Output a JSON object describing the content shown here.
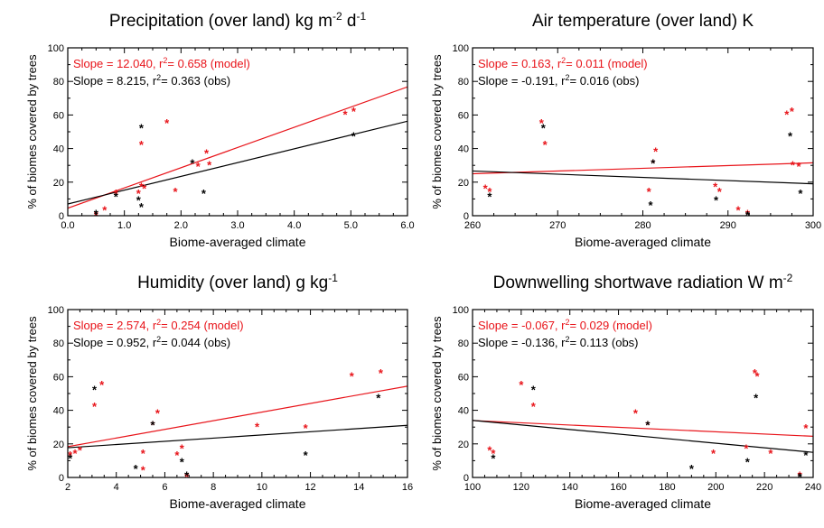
{
  "figure": {
    "ylabel": "% of biomes covered by trees",
    "xlabel": "Biome-averaged climate",
    "model_color": "#e8141a",
    "obs_color": "#000000"
  },
  "chart_data": [
    {
      "type": "scatter",
      "title": {
        "main": "Precipitation (over land) kg m",
        "sup1": "-2",
        "mid": " d",
        "sup2": "-1"
      },
      "xlabel": "Biome-averaged climate",
      "ylabel": "% of biomes covered by trees",
      "xlim": [
        0,
        6
      ],
      "ylim": [
        0,
        100
      ],
      "xticks": [
        0,
        1,
        2,
        3,
        4,
        5,
        6
      ],
      "xtick_labels": [
        "0.0",
        "1.0",
        "2.0",
        "3.0",
        "4.0",
        "5.0",
        "6.0"
      ],
      "yticks": [
        0,
        20,
        40,
        60,
        80,
        100
      ],
      "ytick_labels": [
        "0",
        "20",
        "40",
        "60",
        "80",
        "100"
      ],
      "annotations": {
        "model": {
          "pre": "Slope = 12.040, r",
          "sup": "2",
          "post": "= 0.658 (model)"
        },
        "obs": {
          "pre": "Slope = 8.215, r",
          "sup": "2",
          "post": "= 0.363 (obs)"
        }
      },
      "series": [
        {
          "points": [
            [
              0.5,
              1
            ],
            [
              0.65,
              4
            ],
            [
              0.85,
              14
            ],
            [
              1.25,
              14
            ],
            [
              1.3,
              18
            ],
            [
              1.3,
              43
            ],
            [
              1.35,
              17
            ],
            [
              1.75,
              56
            ],
            [
              1.9,
              15
            ],
            [
              2.3,
              30
            ],
            [
              2.45,
              38
            ],
            [
              2.5,
              31
            ],
            [
              4.9,
              61
            ],
            [
              5.05,
              63
            ]
          ]
        },
        {
          "points": [
            [
              0.5,
              2
            ],
            [
              0.85,
              12
            ],
            [
              1.25,
              10
            ],
            [
              1.3,
              53
            ],
            [
              1.3,
              6
            ],
            [
              2.2,
              32
            ],
            [
              2.4,
              14
            ],
            [
              5.05,
              48
            ]
          ]
        }
      ],
      "fits": [
        {
          "slope": 12.04,
          "intercept": 4.5
        },
        {
          "slope": 8.215,
          "intercept": 7.0
        }
      ]
    },
    {
      "type": "scatter",
      "title": {
        "main": "Air temperature (over land) K",
        "sup1": "",
        "mid": "",
        "sup2": ""
      },
      "xlabel": "Biome-averaged climate",
      "ylabel": "% of biomes covered by trees",
      "xlim": [
        260,
        300
      ],
      "ylim": [
        0,
        100
      ],
      "xticks": [
        260,
        270,
        280,
        290,
        300
      ],
      "xtick_labels": [
        "260",
        "270",
        "280",
        "290",
        "300"
      ],
      "yticks": [
        0,
        20,
        40,
        60,
        80,
        100
      ],
      "ytick_labels": [
        "0",
        "20",
        "40",
        "60",
        "80",
        "100"
      ],
      "annotations": {
        "model": {
          "pre": "Slope = 0.163, r",
          "sup": "2",
          "post": "= 0.011 (model)"
        },
        "obs": {
          "pre": "Slope = -0.191, r",
          "sup": "2",
          "post": "= 0.016 (obs)"
        }
      },
      "series": [
        {
          "points": [
            [
              261.5,
              17
            ],
            [
              262,
              15
            ],
            [
              268.1,
              56
            ],
            [
              268.5,
              43
            ],
            [
              280.7,
              15
            ],
            [
              281.2,
              32
            ],
            [
              281.5,
              39
            ],
            [
              288.5,
              18
            ],
            [
              289,
              15
            ],
            [
              291.2,
              4
            ],
            [
              292.3,
              2
            ],
            [
              296.9,
              61
            ],
            [
              297.5,
              63
            ],
            [
              297.6,
              31
            ],
            [
              298.3,
              30
            ]
          ]
        },
        {
          "points": [
            [
              262,
              12
            ],
            [
              268.3,
              53
            ],
            [
              280.9,
              7
            ],
            [
              281.2,
              32
            ],
            [
              288.6,
              10
            ],
            [
              292.3,
              1
            ],
            [
              297.3,
              48
            ],
            [
              298.5,
              14
            ]
          ]
        }
      ],
      "fits": [
        {
          "slope": 0.163,
          "intercept": -17.4
        },
        {
          "slope": -0.191,
          "intercept": 76.3
        }
      ]
    },
    {
      "type": "scatter",
      "title": {
        "main": "Humidity (over land) g kg",
        "sup1": "-1",
        "mid": "",
        "sup2": ""
      },
      "xlabel": "Biome-averaged climate",
      "ylabel": "% of biomes covered by trees",
      "xlim": [
        2,
        16
      ],
      "ylim": [
        0,
        100
      ],
      "xticks": [
        2,
        4,
        6,
        8,
        10,
        12,
        14,
        16
      ],
      "xtick_labels": [
        "2",
        "4",
        "6",
        "8",
        "10",
        "12",
        "14",
        "16"
      ],
      "yticks": [
        0,
        20,
        40,
        60,
        80,
        100
      ],
      "ytick_labels": [
        "0",
        "20",
        "40",
        "60",
        "80",
        "100"
      ],
      "annotations": {
        "model": {
          "pre": "Slope = 2.574, r",
          "sup": "2",
          "post": "= 0.254 (model)"
        },
        "obs": {
          "pre": "Slope = 0.952, r",
          "sup": "2",
          "post": "= 0.044 (obs)"
        }
      },
      "series": [
        {
          "points": [
            [
              2.1,
              14
            ],
            [
              2.3,
              15
            ],
            [
              2.5,
              17
            ],
            [
              3.1,
              43
            ],
            [
              3.4,
              56
            ],
            [
              5.1,
              15
            ],
            [
              5.1,
              5
            ],
            [
              5.5,
              32
            ],
            [
              5.7,
              39
            ],
            [
              6.5,
              14
            ],
            [
              6.7,
              18
            ],
            [
              6.9,
              1
            ],
            [
              9.8,
              31
            ],
            [
              11.8,
              30
            ],
            [
              13.7,
              61
            ],
            [
              14.9,
              63
            ]
          ]
        },
        {
          "points": [
            [
              2.1,
              12
            ],
            [
              3.1,
              53
            ],
            [
              4.8,
              6
            ],
            [
              5.5,
              32
            ],
            [
              6.7,
              10
            ],
            [
              6.9,
              2
            ],
            [
              11.8,
              14
            ],
            [
              14.8,
              48
            ]
          ]
        }
      ],
      "fits": [
        {
          "slope": 2.574,
          "intercept": 13.2
        },
        {
          "slope": 0.952,
          "intercept": 15.8
        }
      ]
    },
    {
      "type": "scatter",
      "title": {
        "main": "Downwelling shortwave radiation W m",
        "sup1": "-2",
        "mid": "",
        "sup2": ""
      },
      "xlabel": "Biome-averaged climate",
      "ylabel": "% of biomes covered by trees",
      "xlim": [
        100,
        240
      ],
      "ylim": [
        0,
        100
      ],
      "xticks": [
        100,
        120,
        140,
        160,
        180,
        200,
        220,
        240
      ],
      "xtick_labels": [
        "100",
        "120",
        "140",
        "160",
        "180",
        "200",
        "220",
        "240"
      ],
      "yticks": [
        0,
        20,
        40,
        60,
        80,
        100
      ],
      "ytick_labels": [
        "0",
        "20",
        "40",
        "60",
        "80",
        "100"
      ],
      "annotations": {
        "model": {
          "pre": "Slope = -0.067, r",
          "sup": "2",
          "post": "= 0.029 (model)"
        },
        "obs": {
          "pre": "Slope = -0.136, r",
          "sup": "2",
          "post": "= 0.113 (obs)"
        }
      },
      "series": [
        {
          "points": [
            [
              107,
              17
            ],
            [
              108.5,
              15
            ],
            [
              120,
              56
            ],
            [
              125,
              43
            ],
            [
              167,
              39
            ],
            [
              172,
              32
            ],
            [
              199,
              15
            ],
            [
              212.5,
              18
            ],
            [
              216,
              63
            ],
            [
              217,
              61
            ],
            [
              222.5,
              15
            ],
            [
              234.5,
              2
            ],
            [
              237,
              30
            ]
          ]
        },
        {
          "points": [
            [
              108.5,
              12
            ],
            [
              125,
              53
            ],
            [
              172,
              32
            ],
            [
              190,
              6
            ],
            [
              213,
              10
            ],
            [
              216.5,
              48
            ],
            [
              234.5,
              1
            ],
            [
              237,
              14
            ]
          ]
        }
      ],
      "fits": [
        {
          "slope": -0.067,
          "intercept": 40.6
        },
        {
          "slope": -0.136,
          "intercept": 47.6
        }
      ]
    }
  ]
}
